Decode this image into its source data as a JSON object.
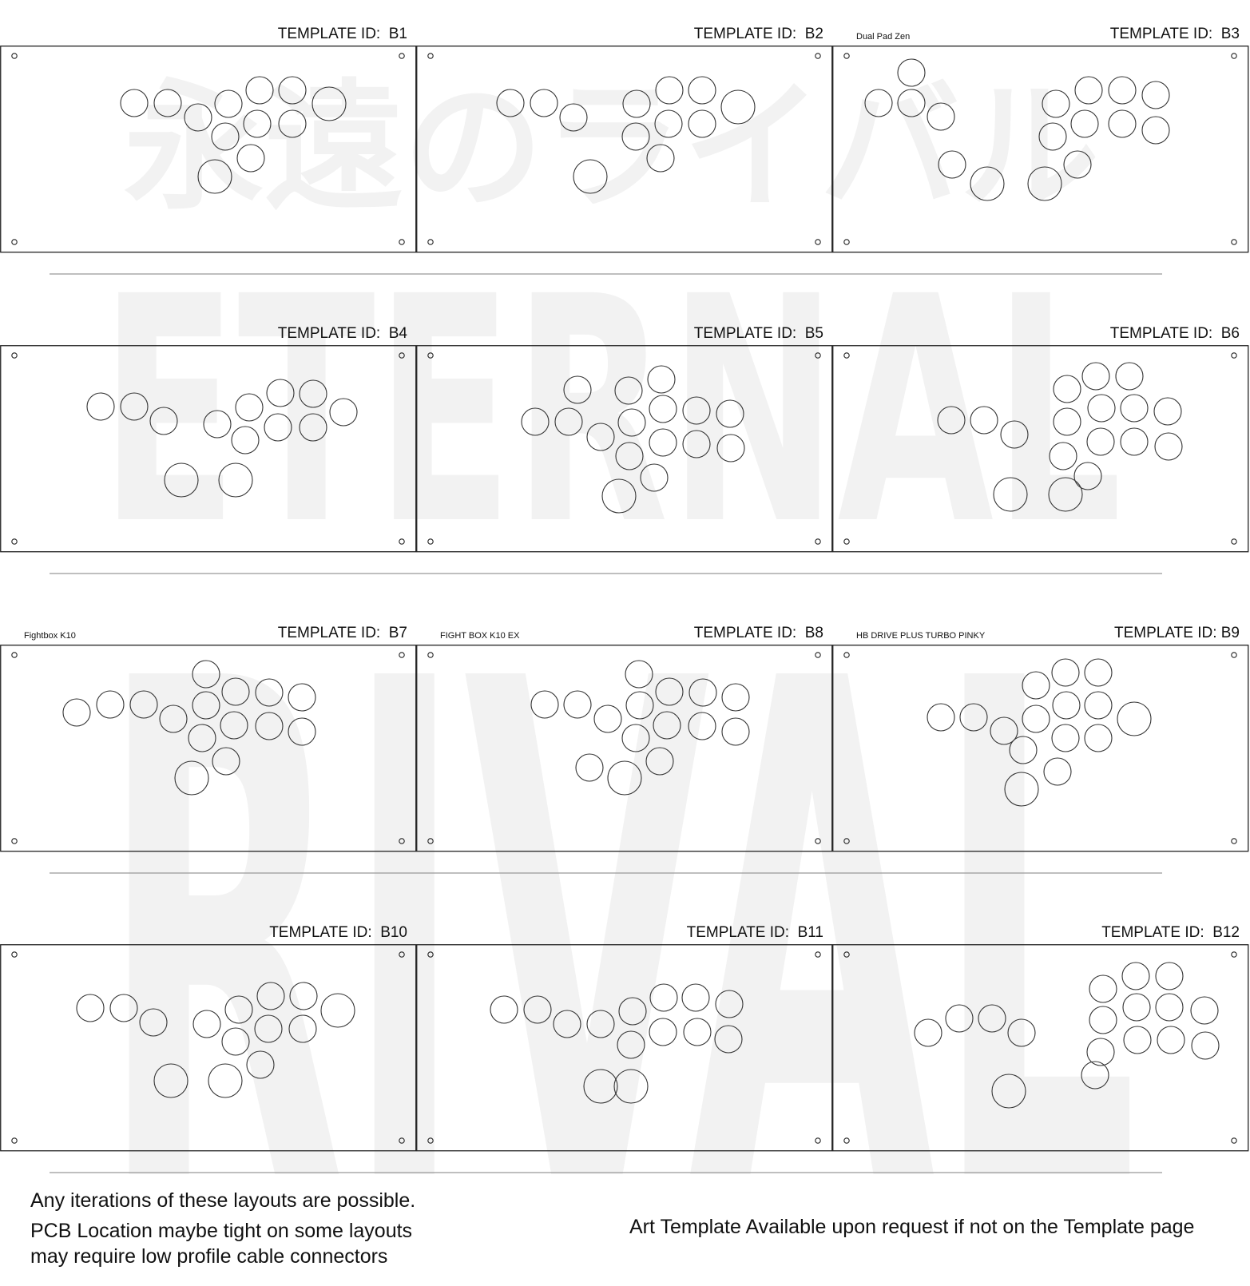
{
  "watermark": {
    "japanese": "永遠のライバル",
    "english_line1": "ETERNAL",
    "english_line2": "RIVAL",
    "color": "#f2f2f2"
  },
  "row_separator_count": 4,
  "templates": [
    {
      "id_label": "TEMPLATE ID:  B1",
      "name": "",
      "buttons": 13
    },
    {
      "id_label": "TEMPLATE ID:  B2",
      "name": "",
      "buttons": 12
    },
    {
      "id_label": "TEMPLATE ID:  B3",
      "name": "Dual Pad Zen",
      "buttons": 16
    },
    {
      "id_label": "TEMPLATE ID:  B4",
      "name": "",
      "buttons": 14
    },
    {
      "id_label": "TEMPLATE ID:  B5",
      "name": "",
      "buttons": 16
    },
    {
      "id_label": "TEMPLATE ID:  B6",
      "name": "",
      "buttons": 17
    },
    {
      "id_label": "TEMPLATE ID:  B7",
      "name": "Fightbox K10",
      "buttons": 17
    },
    {
      "id_label": "TEMPLATE ID:  B8",
      "name": "FIGHT BOX K10 EX",
      "buttons": 16
    },
    {
      "id_label": "TEMPLATE ID: B9",
      "name": "HB DRIVE PLUS TURBO PINKY",
      "buttons": 16
    },
    {
      "id_label": "TEMPLATE ID:  B10",
      "name": "",
      "buttons": 15
    },
    {
      "id_label": "TEMPLATE ID:  B11",
      "name": "",
      "buttons": 15
    },
    {
      "id_label": "TEMPLATE ID:  B12",
      "name": "",
      "buttons": 17
    }
  ],
  "notes": {
    "line1": "Any iterations of these layouts are possible.",
    "line2": "PCB Location maybe tight on some layouts",
    "line3": "may require low profile cable connectors",
    "right": "Art Template Available upon request if not on the Template page"
  }
}
